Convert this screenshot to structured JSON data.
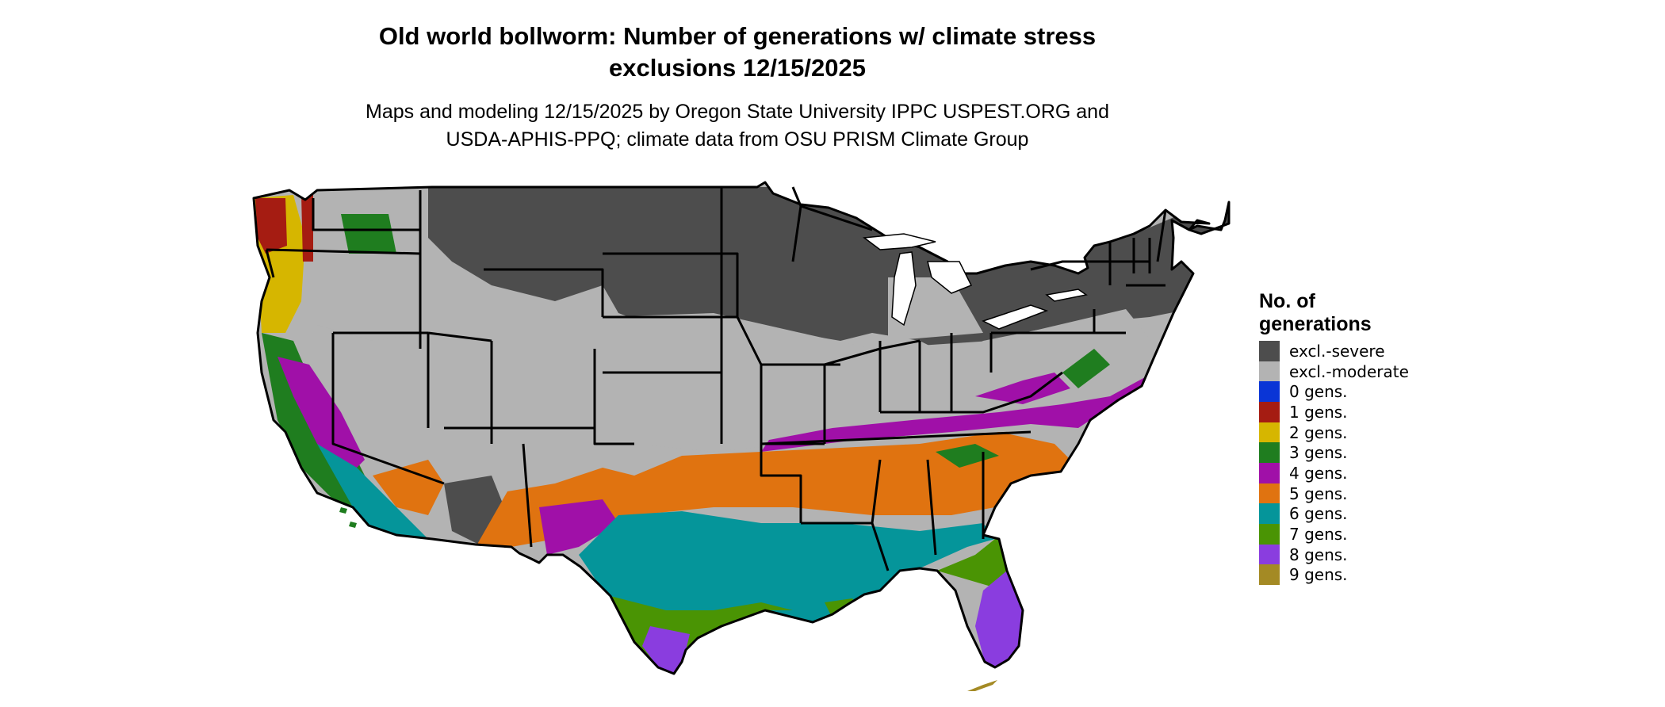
{
  "title": {
    "line1": "Old world bollworm: Number of generations w/ climate stress",
    "line2": "exclusions 12/15/2025"
  },
  "subtitle": {
    "line1": "Maps and modeling 12/15/2025 by Oregon State University IPPC USPEST.ORG and",
    "line2": "USDA-APHIS-PPQ; climate data from OSU PRISM Climate Group"
  },
  "legend": {
    "title_line1": "No. of",
    "title_line2": "generations",
    "items": [
      {
        "label": "excl.-severe",
        "color": "#4d4d4d"
      },
      {
        "label": "excl.-moderate",
        "color": "#b3b3b3"
      },
      {
        "label": "0 gens.",
        "color": "#0a35d6"
      },
      {
        "label": "1 gens.",
        "color": "#a51c12"
      },
      {
        "label": "2 gens.",
        "color": "#d6b600"
      },
      {
        "label": "3 gens.",
        "color": "#1f7d1f"
      },
      {
        "label": "4 gens.",
        "color": "#a010a8"
      },
      {
        "label": "5 gens.",
        "color": "#e07310"
      },
      {
        "label": "6 gens.",
        "color": "#05959a"
      },
      {
        "label": "7 gens.",
        "color": "#4a9404"
      },
      {
        "label": "8 gens.",
        "color": "#8a3ddf"
      },
      {
        "label": "9 gens.",
        "color": "#a48a24"
      }
    ]
  }
}
